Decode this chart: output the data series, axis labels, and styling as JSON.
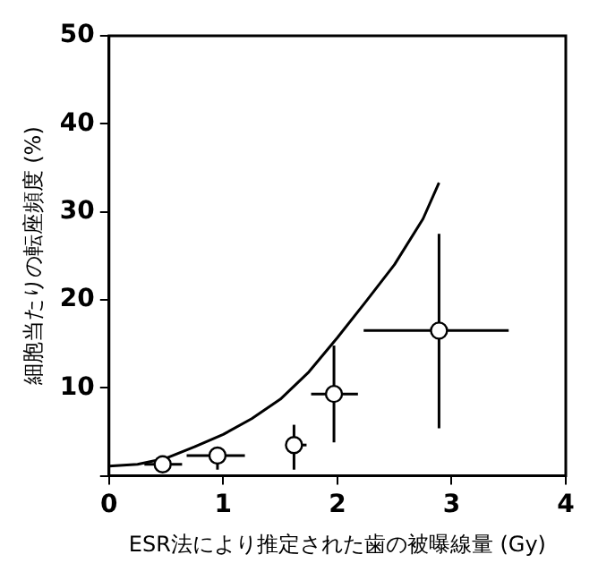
{
  "chart_data": {
    "type": "scatter",
    "xlabel": "ESR法により推定された歯の被曝線量 (Gy)",
    "ylabel": "細胞当たりの転座頻度 (%)",
    "xlim": [
      0,
      4
    ],
    "xticks": [
      0,
      1,
      2,
      3,
      4
    ],
    "ylim": [
      0,
      50
    ],
    "yticks": [
      {
        "value": 0,
        "label": null
      },
      10,
      20,
      30,
      40,
      50
    ],
    "grid": false,
    "legend": false,
    "marker": "circle",
    "series": [
      {
        "color": "#000000",
        "x": [
          0.47,
          0.95,
          1.62,
          1.97,
          2.89
        ],
        "values": [
          1.3,
          2.3,
          3.5,
          9.3,
          16.5
        ],
        "errors": [
          null,
          [
            0.7,
            3.1
          ],
          [
            0.7,
            5.8
          ],
          [
            3.8,
            14.8
          ],
          [
            5.4,
            27.5
          ]
        ],
        "xerrors": [
          [
            0.31,
            0.64
          ],
          [
            0.68,
            1.19
          ],
          [
            1.55,
            1.73
          ],
          [
            1.77,
            2.18
          ],
          [
            2.23,
            3.5
          ]
        ]
      },
      {
        "type": "line",
        "color": "#000000",
        "marker": "none",
        "line_style": "solid",
        "x": [
          0,
          0.25,
          0.5,
          0.75,
          1,
          1.25,
          1.5,
          1.75,
          2,
          2.25,
          2.5,
          2.75,
          2.89
        ],
        "values": [
          1.1,
          1.3,
          2.0,
          3.3,
          4.7,
          6.5,
          8.7,
          11.8,
          15.7,
          19.8,
          24.0,
          29.2,
          33.3
        ]
      }
    ]
  }
}
